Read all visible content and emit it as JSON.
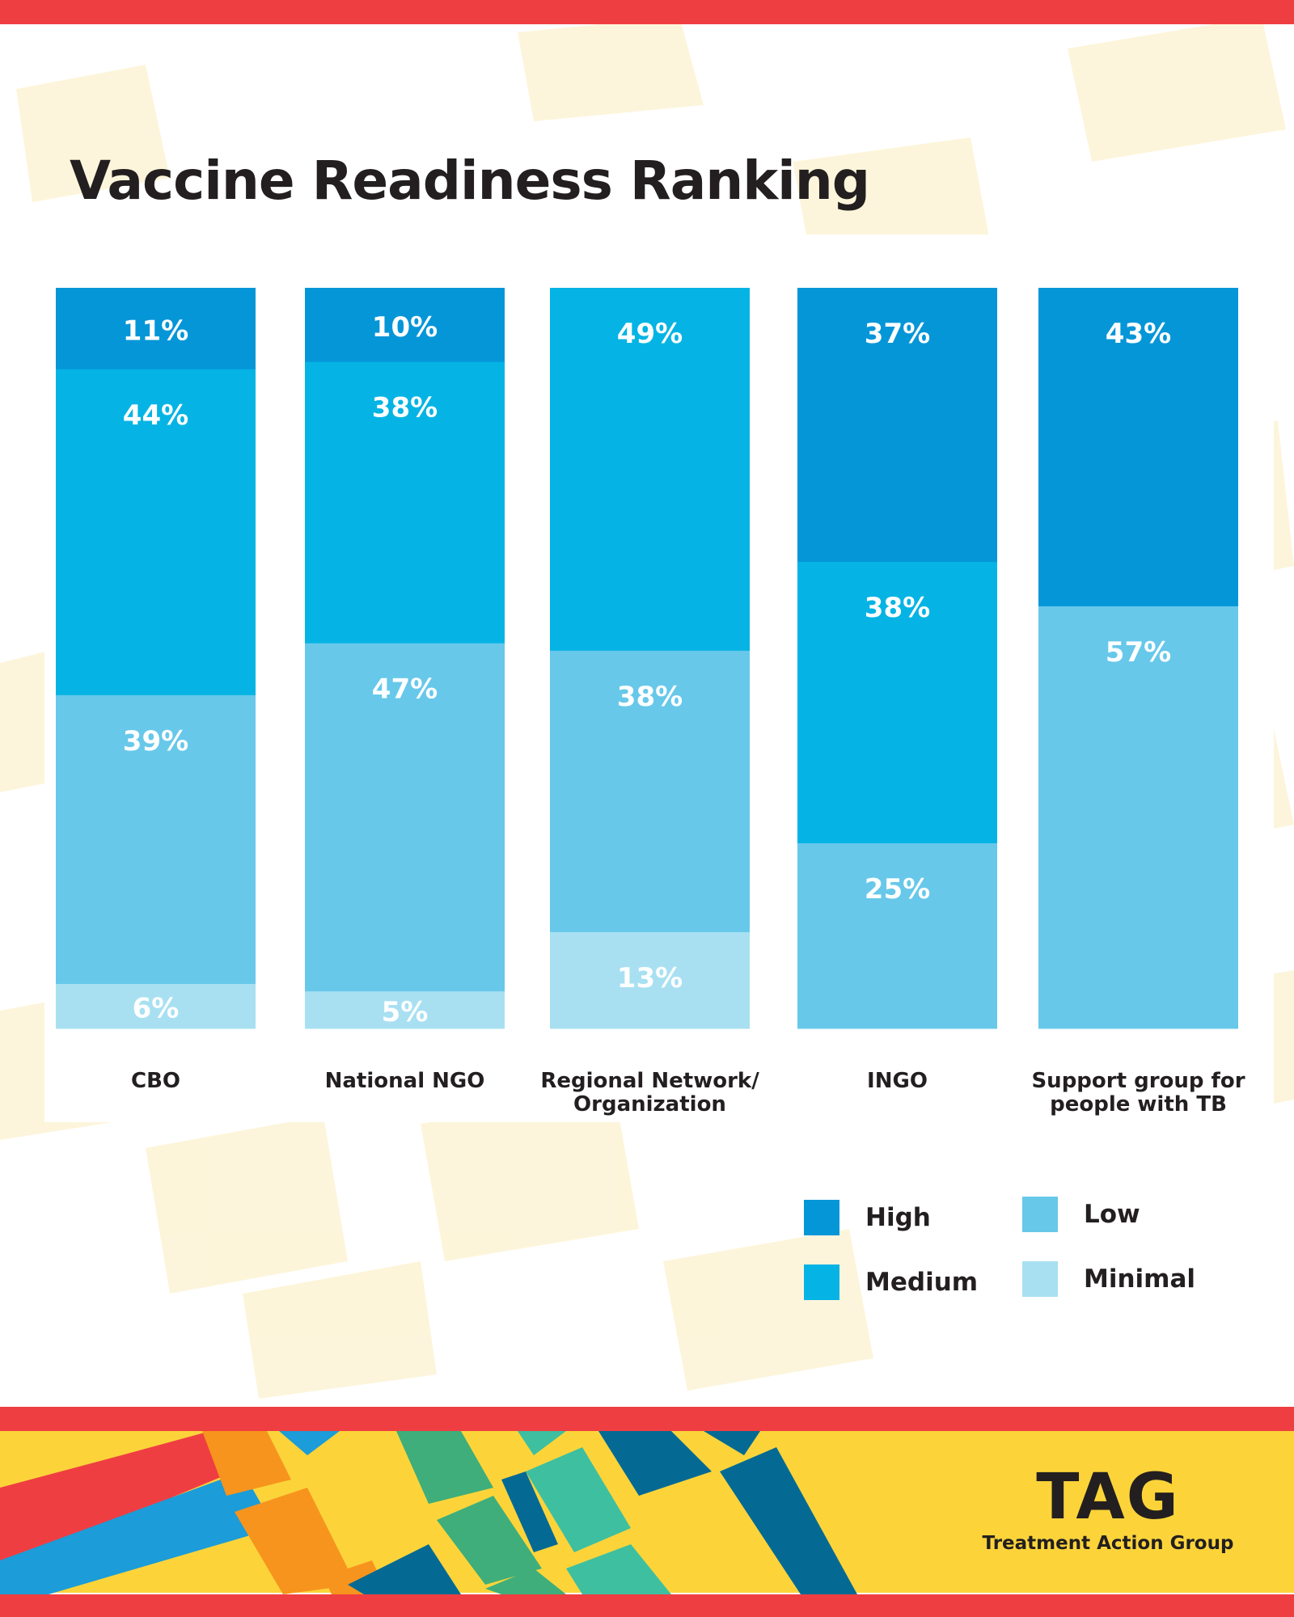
{
  "title": "Vaccine Readiness Ranking",
  "colors": {
    "High": "#0596d8",
    "Medium": "#05b4e4",
    "Low": "#67c8ea",
    "Minimal": "#a8e0f2",
    "accent_red": "#ef3e42",
    "accent_yellow": "#fcd43a"
  },
  "chart_data": {
    "type": "bar",
    "stacked": true,
    "title": "Vaccine Readiness Ranking",
    "categories": [
      "CBO",
      "National NGO",
      "Regional Network/ Organization",
      "INGO",
      "Support group for people with TB"
    ],
    "category_lines": [
      [
        "CBO"
      ],
      [
        "National NGO"
      ],
      [
        "Regional Network/",
        "Organization"
      ],
      [
        "INGO"
      ],
      [
        "Support group for",
        "people with TB"
      ]
    ],
    "series": [
      {
        "name": "High",
        "values": [
          11,
          10,
          0,
          37,
          43
        ]
      },
      {
        "name": "Medium",
        "values": [
          44,
          38,
          49,
          38,
          0
        ]
      },
      {
        "name": "Low",
        "values": [
          39,
          47,
          38,
          25,
          57
        ]
      },
      {
        "name": "Minimal",
        "values": [
          6,
          5,
          13,
          0,
          0
        ]
      }
    ],
    "value_labels_suffix": "%",
    "ylim": [
      0,
      100
    ],
    "xlabel": "",
    "ylabel": "",
    "grid": false,
    "legend_position": "bottom-right"
  },
  "legend": {
    "items": [
      {
        "label": "High",
        "color": "#0596d8"
      },
      {
        "label": "Low",
        "color": "#67c8ea"
      },
      {
        "label": "Medium",
        "color": "#05b4e4"
      },
      {
        "label": "Minimal",
        "color": "#a8e0f2"
      }
    ]
  },
  "brand": {
    "name": "TAG",
    "full_name": "Treatment Action Group"
  }
}
